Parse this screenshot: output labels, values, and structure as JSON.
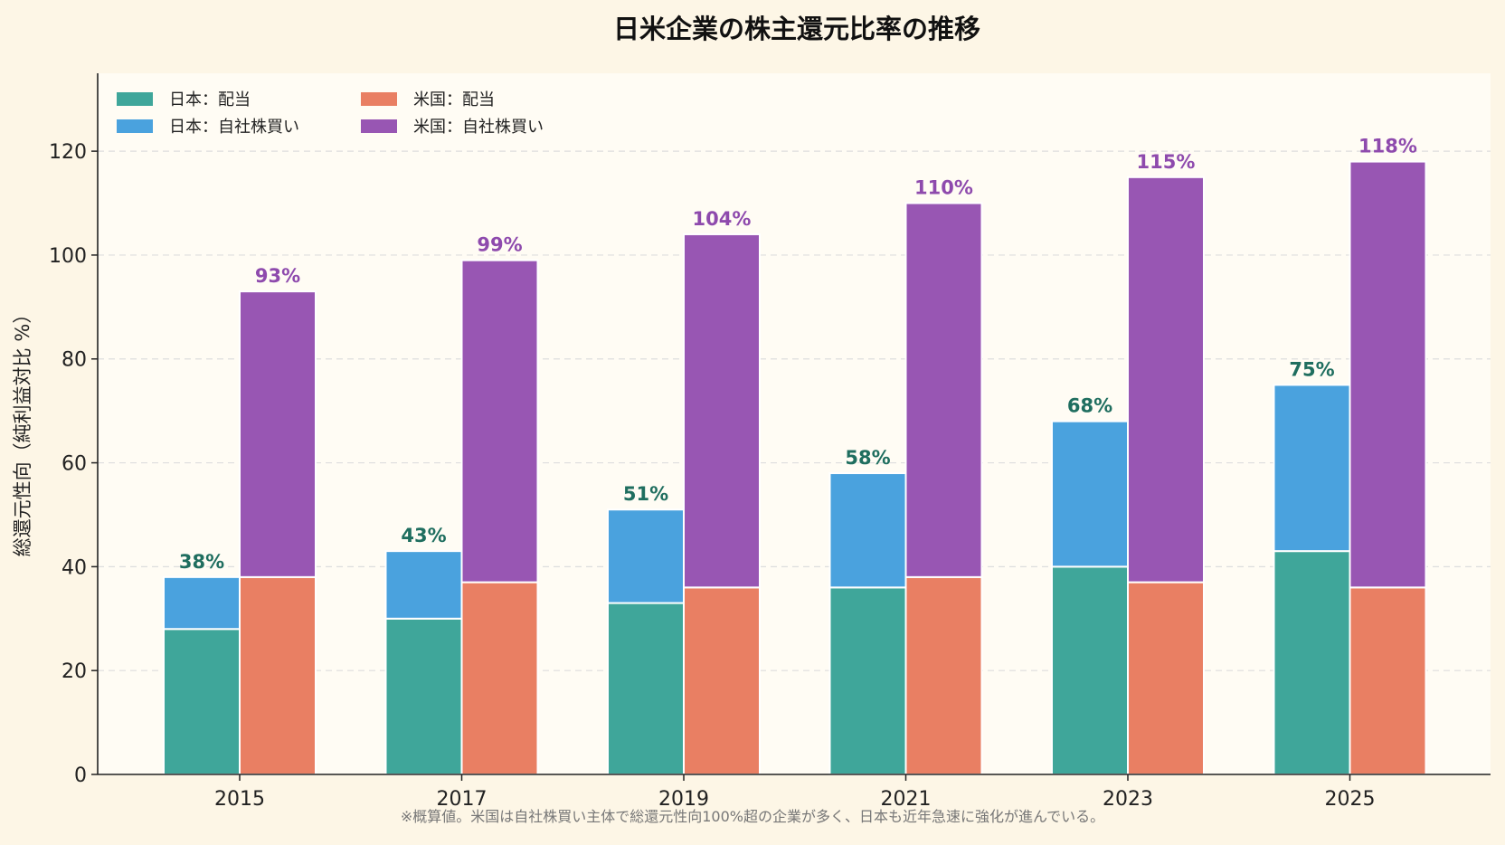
{
  "chart_data": {
    "type": "bar",
    "title": "日米企業の株主還元比率の推移",
    "xlabel": "",
    "ylabel": "総還元性向（純利益対比 %）",
    "categories": [
      "2015",
      "2017",
      "2019",
      "2021",
      "2023",
      "2025"
    ],
    "ylim": [
      0,
      135
    ],
    "yticks": [
      "0",
      "20",
      "40",
      "60",
      "80",
      "100",
      "120"
    ],
    "grid": "horizontal dashed",
    "legend_position": "top-left",
    "series": [
      {
        "name": "日本：配当",
        "stack": "日本",
        "values": [
          28,
          30,
          33,
          36,
          40,
          43
        ],
        "color": "#3fa69a"
      },
      {
        "name": "日本：自社株買い",
        "stack": "日本",
        "values": [
          10,
          13,
          18,
          22,
          28,
          32
        ],
        "color": "#4aa2de"
      },
      {
        "name": "米国：配当",
        "stack": "米国",
        "values": [
          38,
          37,
          36,
          38,
          37,
          36
        ],
        "color": "#e97f63"
      },
      {
        "name": "米国：自社株買い",
        "stack": "米国",
        "values": [
          55,
          62,
          68,
          72,
          78,
          82
        ],
        "color": "#9856b3"
      }
    ],
    "totals": {
      "日本": [
        "38%",
        "43%",
        "51%",
        "58%",
        "68%",
        "75%"
      ],
      "米国": [
        "93%",
        "99%",
        "104%",
        "110%",
        "115%",
        "118%"
      ]
    },
    "total_label_colors": {
      "日本": "#1f6e5f",
      "米国": "#8e4aad"
    },
    "note": "※概算値。米国は自社株買い主体で総還元性向100%超の企業が多く、日本も近年急速に強化が進んでいる。"
  },
  "colors": {
    "page_background": "#fdf6e6",
    "plot_background": "#fffcf4",
    "grid": "#dddddd",
    "axis": "#222222"
  }
}
